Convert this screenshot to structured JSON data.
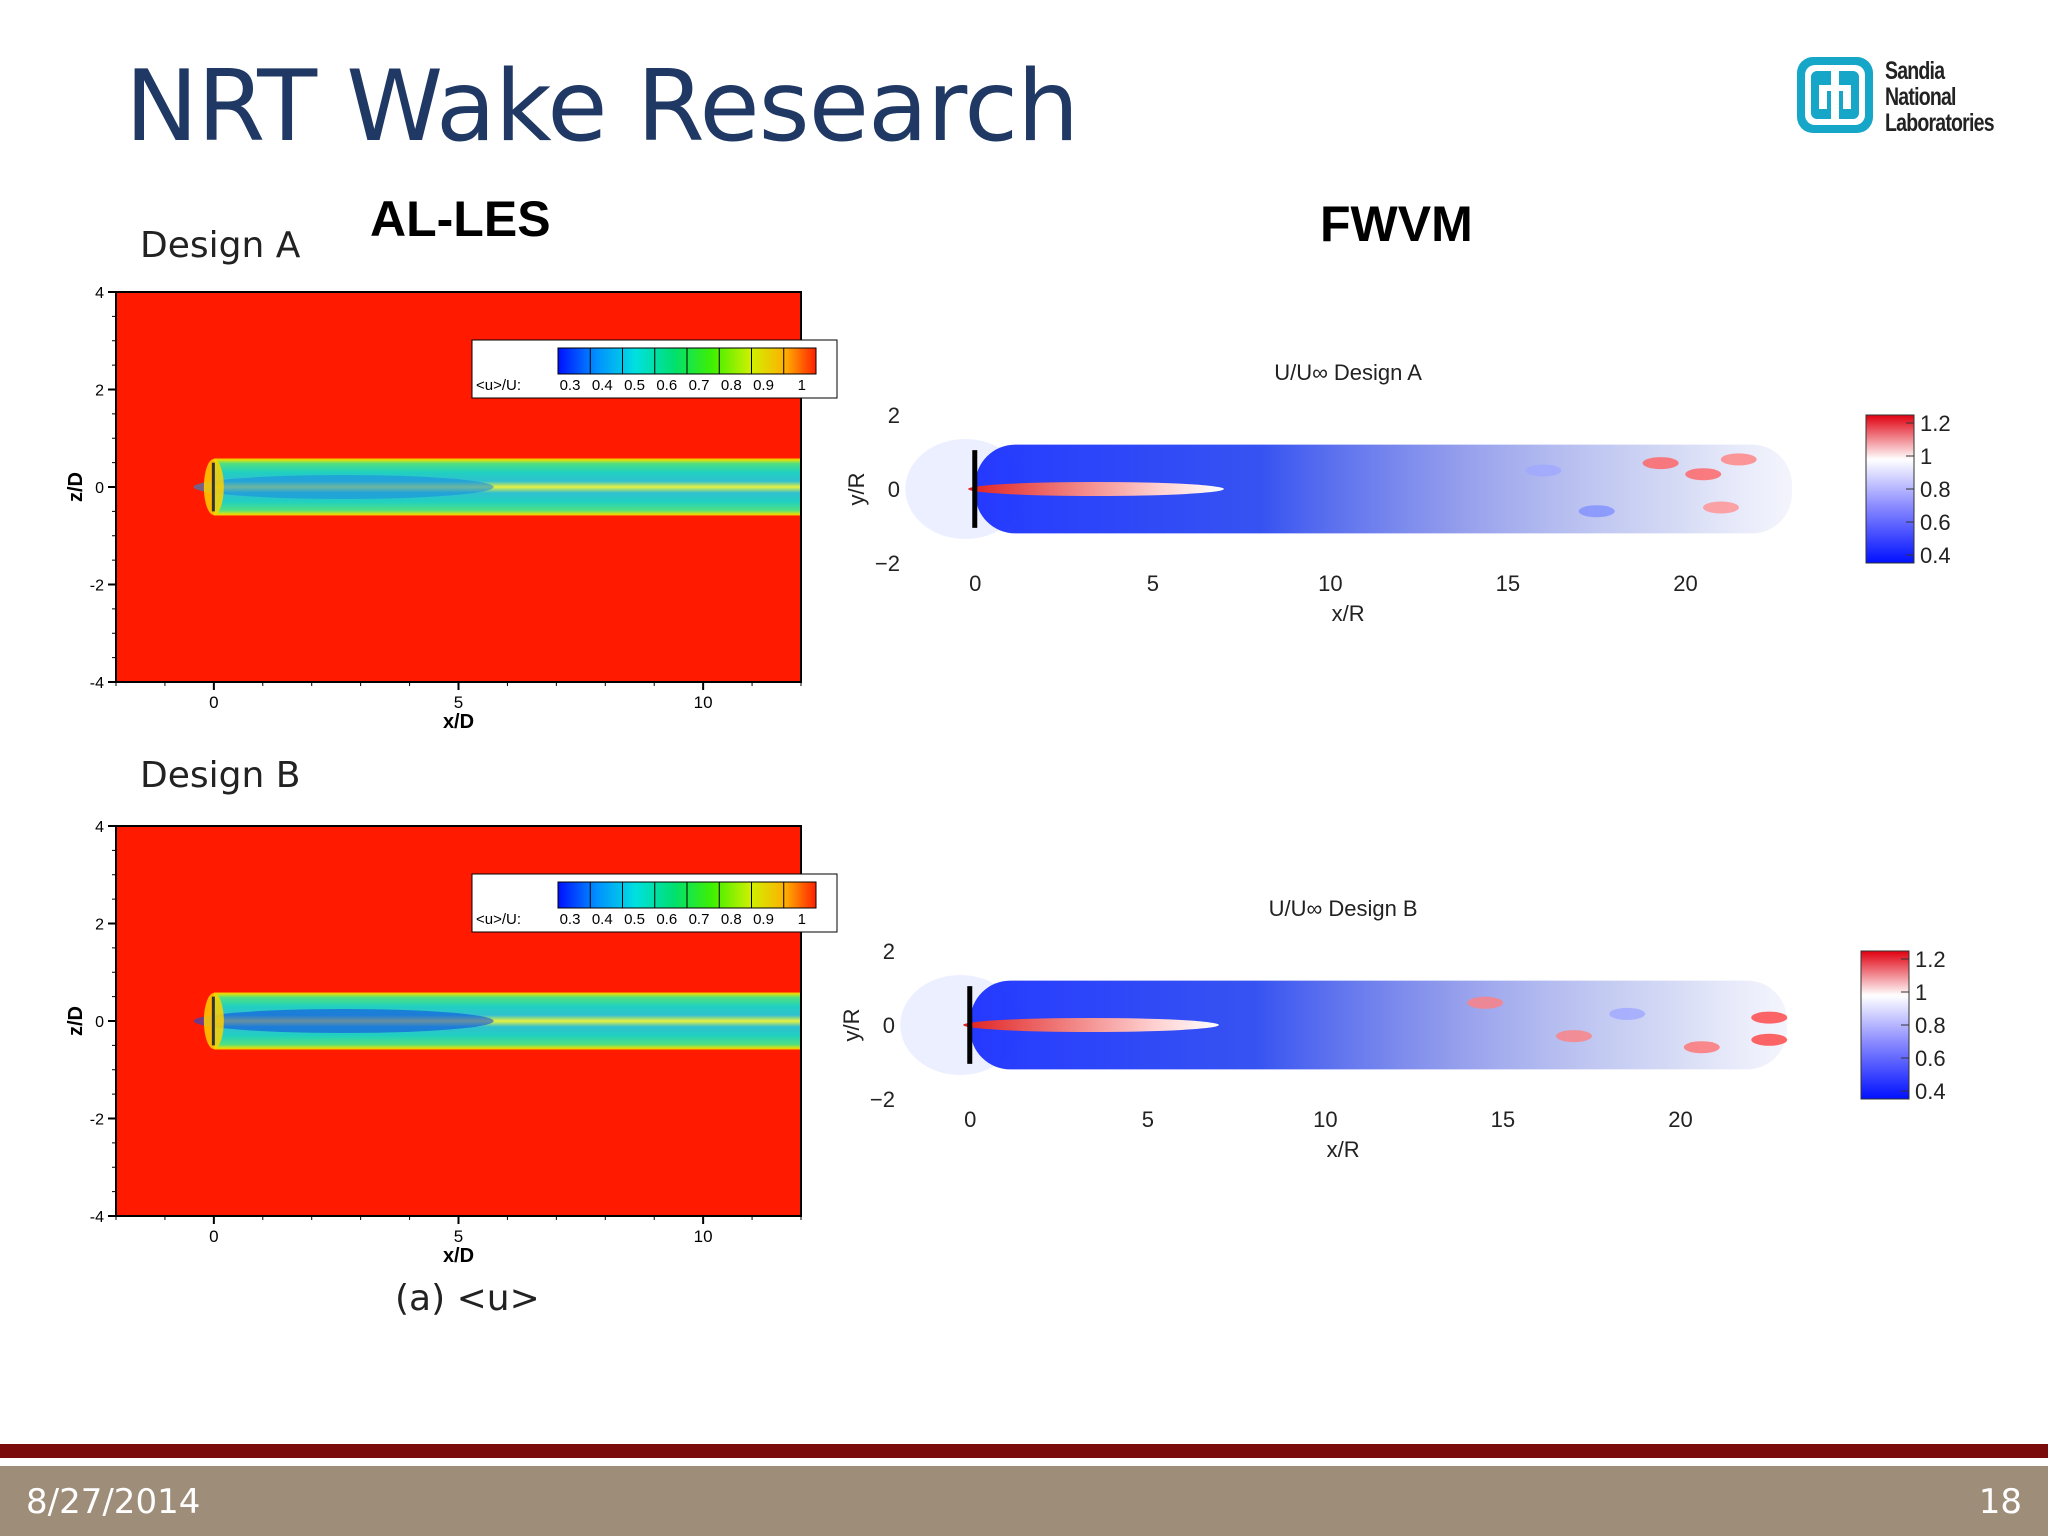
{
  "slide": {
    "title": "NRT Wake Research",
    "logo_text": [
      "Sandia",
      "National",
      "Laboratories"
    ],
    "section_left": "AL-LES",
    "section_right": "FWVM",
    "caption": "(a) <u>",
    "footer_date": "8/27/2014",
    "footer_page": "18"
  },
  "colors": {
    "title": "#1f3864",
    "footer_stripe": "#7b0c0c",
    "footer_bar": "#9e8e79",
    "logo": "#16a6c8"
  },
  "chart_data": [
    {
      "type": "heatmap",
      "panel_label": "Design A",
      "xlabel": "x/D",
      "ylabel": "z/D",
      "xticks": [
        "0",
        "5",
        "10"
      ],
      "yticks": [
        "4",
        "2",
        "0",
        "-2",
        "-4"
      ],
      "xlim": [
        -2,
        12
      ],
      "ylim": [
        -4,
        4
      ],
      "colorbar": {
        "label": "<u>/U:",
        "ticks": [
          "0.3",
          "0.4",
          "0.5",
          "0.6",
          "0.7",
          "0.8",
          "0.9",
          "1"
        ]
      },
      "wake": {
        "x_start": 0,
        "x_end": 12,
        "half_width": 0.6,
        "min_value": 0.5
      }
    },
    {
      "type": "heatmap",
      "panel_label": "Design B",
      "xlabel": "x/D",
      "ylabel": "z/D",
      "xticks": [
        "0",
        "5",
        "10"
      ],
      "yticks": [
        "4",
        "2",
        "0",
        "-2",
        "-4"
      ],
      "xlim": [
        -2,
        12
      ],
      "ylim": [
        -4,
        4
      ],
      "colorbar": {
        "label": "<u>/U:",
        "ticks": [
          "0.3",
          "0.4",
          "0.5",
          "0.6",
          "0.7",
          "0.8",
          "0.9",
          "1"
        ]
      },
      "wake": {
        "x_start": 0,
        "x_end": 12,
        "half_width": 0.6,
        "min_value": 0.4
      }
    },
    {
      "type": "heatmap",
      "title": "U/U∞ Design A",
      "xlabel": "x/R",
      "ylabel": "y/R",
      "xticks": [
        "0",
        "5",
        "10",
        "15",
        "20"
      ],
      "yticks": [
        "2",
        "0",
        "−2"
      ],
      "xlim": [
        -1.5,
        23
      ],
      "ylim": [
        -2,
        2
      ],
      "colorbar": {
        "ticks": [
          "1.2",
          "1",
          "0.8",
          "0.6",
          "0.4"
        ]
      }
    },
    {
      "type": "heatmap",
      "title": "U/U∞ Design B",
      "xlabel": "x/R",
      "ylabel": "y/R",
      "xticks": [
        "0",
        "5",
        "10",
        "15",
        "20"
      ],
      "yticks": [
        "2",
        "0",
        "−2"
      ],
      "xlim": [
        -1.5,
        23
      ],
      "ylim": [
        -2,
        2
      ],
      "colorbar": {
        "ticks": [
          "1.2",
          "1",
          "0.8",
          "0.6",
          "0.4"
        ]
      }
    }
  ]
}
